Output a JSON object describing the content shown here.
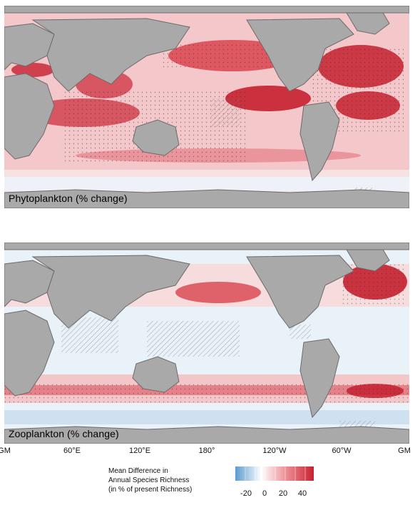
{
  "panels": [
    {
      "id": "phyto",
      "label": "Phytoplankton (% change)"
    },
    {
      "id": "zoo",
      "label": "Zooplankton (% change)"
    }
  ],
  "longitude_ticks": [
    "GM",
    "60°E",
    "120°E",
    "180°",
    "120°W",
    "60°W",
    "GM"
  ],
  "legend": {
    "title_lines": [
      "Mean Difference in",
      "Annual Species Richness",
      "(in % of present Richness)"
    ],
    "ticks": [
      "-20",
      "0",
      "20",
      "40"
    ],
    "colors": {
      "negative": "#5b9bd1",
      "zero": "#ffffff",
      "positive": "#c8202f",
      "land": "#a9a9a9",
      "land_edge": "#6b6b6b"
    }
  }
}
